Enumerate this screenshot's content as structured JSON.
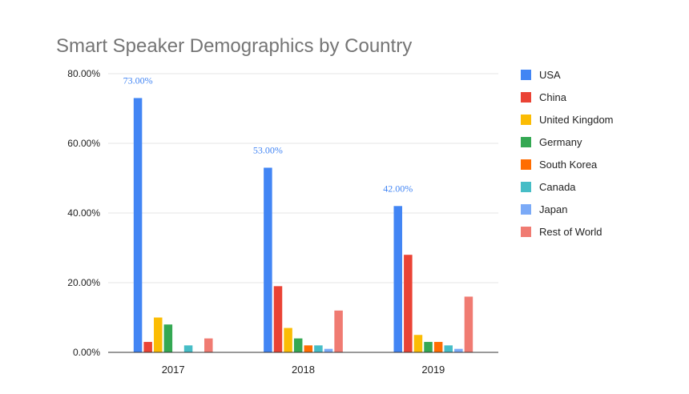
{
  "chart_data": {
    "type": "bar",
    "title": "Smart Speaker Demographics by Country",
    "xlabel": "",
    "ylabel": "",
    "categories": [
      "2017",
      "2018",
      "2019"
    ],
    "ylim": [
      0,
      80
    ],
    "yticks": [
      "0.00%",
      "20.00%",
      "40.00%",
      "60.00%",
      "80.00%"
    ],
    "legend_position": "right",
    "grid": true,
    "series": [
      {
        "name": "USA",
        "color": "#4285f4",
        "values": [
          73,
          53,
          42
        ],
        "labels": [
          "73.00%",
          "53.00%",
          "42.00%"
        ]
      },
      {
        "name": "China",
        "color": "#ea4335",
        "values": [
          3,
          19,
          28
        ]
      },
      {
        "name": "United Kingdom",
        "color": "#fbbc04",
        "values": [
          10,
          7,
          5
        ]
      },
      {
        "name": "Germany",
        "color": "#34a853",
        "values": [
          8,
          4,
          3
        ]
      },
      {
        "name": "South Korea",
        "color": "#ff6d01",
        "values": [
          0,
          2,
          3
        ]
      },
      {
        "name": "Canada",
        "color": "#46bdc6",
        "values": [
          2,
          2,
          2
        ]
      },
      {
        "name": "Japan",
        "color": "#7baaf7",
        "values": [
          0,
          1,
          1
        ]
      },
      {
        "name": "Rest of World",
        "color": "#f07b72",
        "values": [
          4,
          12,
          16
        ]
      }
    ]
  }
}
